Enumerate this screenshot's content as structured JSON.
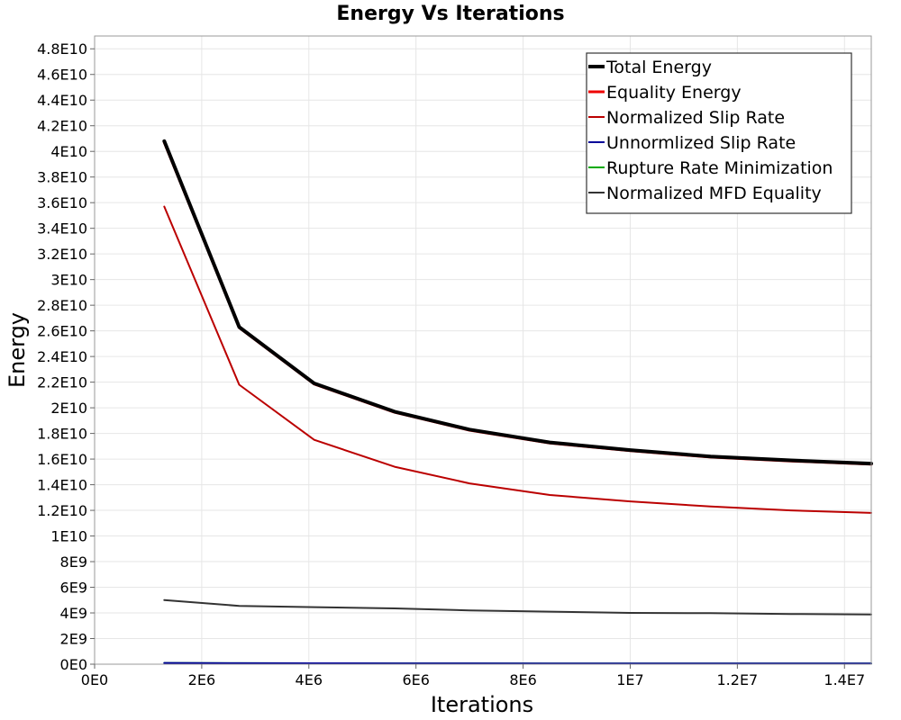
{
  "chart_data": {
    "type": "line",
    "title": "Energy Vs Iterations",
    "xlabel": "Iterations",
    "ylabel": "Energy",
    "xlim": [
      0,
      14500000
    ],
    "ylim": [
      0,
      49000000000
    ],
    "x_ticks": [
      0,
      2000000,
      4000000,
      6000000,
      8000000,
      10000000,
      12000000,
      14000000
    ],
    "x_tick_labels": [
      "0E0",
      "2E6",
      "4E6",
      "6E6",
      "8E6",
      "1E7",
      "1.2E7",
      "1.4E7"
    ],
    "y_ticks": [
      0,
      2000000000,
      4000000000,
      6000000000,
      8000000000,
      10000000000,
      12000000000,
      14000000000,
      16000000000,
      18000000000,
      20000000000,
      22000000000,
      24000000000,
      26000000000,
      28000000000,
      30000000000,
      32000000000,
      34000000000,
      36000000000,
      38000000000,
      40000000000,
      42000000000,
      44000000000,
      46000000000,
      48000000000
    ],
    "y_tick_labels": [
      "0E0",
      "2E9",
      "4E9",
      "6E9",
      "8E9",
      "1E10",
      "1.2E10",
      "1.4E10",
      "1.6E10",
      "1.8E10",
      "2E10",
      "2.2E10",
      "2.4E10",
      "2.6E10",
      "2.8E10",
      "3E10",
      "3.2E10",
      "3.4E10",
      "3.6E10",
      "3.8E10",
      "4E10",
      "4.2E10",
      "4.4E10",
      "4.6E10",
      "4.8E10"
    ],
    "grid": true,
    "legend_position": "top-right",
    "x": [
      1300000,
      2700000,
      4100000,
      5600000,
      7000000,
      8500000,
      10000000,
      11500000,
      13000000,
      14500000
    ],
    "series": [
      {
        "name": "Total Energy",
        "color": "#000000",
        "width": 4,
        "values": [
          40800000000,
          26300000000,
          21900000000,
          19700000000,
          18300000000,
          17300000000,
          16700000000,
          16200000000,
          15900000000,
          15650000000
        ]
      },
      {
        "name": "Equality Energy",
        "color": "#ee0000",
        "width": 3,
        "values": [
          40700000000,
          26250000000,
          21850000000,
          19650000000,
          18250000000,
          17250000000,
          16650000000,
          16150000000,
          15850000000,
          15600000000
        ]
      },
      {
        "name": "Normalized Slip Rate",
        "color": "#bb0000",
        "width": 2,
        "values": [
          35700000000,
          21800000000,
          17500000000,
          15400000000,
          14100000000,
          13200000000,
          12700000000,
          12300000000,
          12000000000,
          11800000000
        ]
      },
      {
        "name": "Unnormlized Slip Rate",
        "color": "#000099",
        "width": 2,
        "values": [
          100000000,
          80000000,
          70000000,
          60000000,
          60000000,
          50000000,
          50000000,
          50000000,
          50000000,
          50000000
        ]
      },
      {
        "name": "Rupture Rate Minimization",
        "color": "#00aa00",
        "width": 2,
        "values": [
          100000000,
          80000000,
          70000000,
          60000000,
          60000000,
          50000000,
          50000000,
          50000000,
          50000000,
          50000000
        ]
      },
      {
        "name": "Normalized MFD Equality",
        "color": "#333333",
        "width": 2,
        "values": [
          5000000000,
          4550000000,
          4450000000,
          4350000000,
          4200000000,
          4100000000,
          4000000000,
          3980000000,
          3920000000,
          3880000000
        ]
      }
    ]
  }
}
